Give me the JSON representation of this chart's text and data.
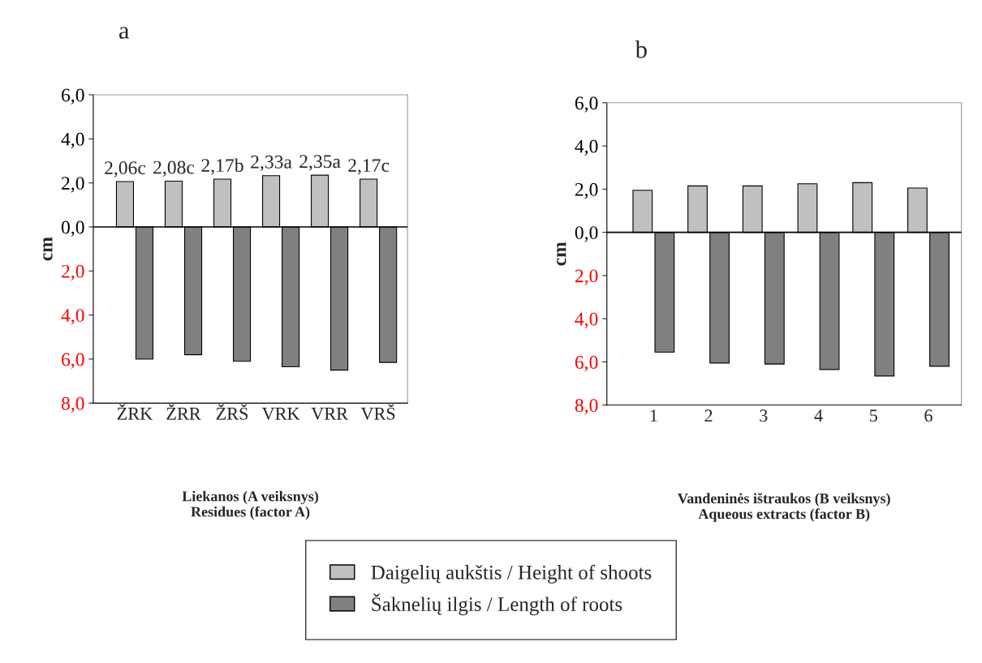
{
  "chart_data": [
    {
      "type": "bar",
      "title": "a",
      "ylabel": "cm",
      "xlabel": "Liekanos (A veiksnys)\nResidues (factor A)",
      "categories": [
        "ŽRK",
        "ŽRR",
        "ŽRŠ",
        "VRK",
        "VRR",
        "VRŠ"
      ],
      "series": [
        {
          "name": "Daigelių aukštis / Height of shoots",
          "color": "#c0c0c0",
          "values": [
            2.06,
            2.08,
            2.17,
            2.33,
            2.35,
            2.17
          ],
          "value_labels": [
            "2,06c",
            "2,08c",
            "2,17b",
            "2,33a",
            "2,35a",
            "2,17c"
          ]
        },
        {
          "name": "Šaknelių ilgis / Length of roots",
          "color": "#808080",
          "values": [
            -6.0,
            -5.8,
            -6.1,
            -6.35,
            -6.5,
            -6.15
          ]
        }
      ],
      "ylim": [
        -8,
        6
      ],
      "yticks": [
        {
          "value": 6,
          "label": "6,0"
        },
        {
          "value": 4,
          "label": "4,0"
        },
        {
          "value": 2,
          "label": "2,0"
        },
        {
          "value": 0,
          "label": "0,0"
        },
        {
          "value": -2,
          "label": "2,0"
        },
        {
          "value": -4,
          "label": "4,0"
        },
        {
          "value": -6,
          "label": "6,0"
        },
        {
          "value": -8,
          "label": "8,0"
        }
      ],
      "ref_lines": [
        {
          "axis": "y",
          "value": 0,
          "color": "#000000"
        }
      ],
      "grid": false,
      "legend": "bottom"
    },
    {
      "type": "bar",
      "title": "b",
      "ylabel": "cm",
      "xlabel": "Vandeninės ištraukos (B veiksnys)\nAqueous extracts (factor B)",
      "categories": [
        "1",
        "2",
        "3",
        "4",
        "5",
        "6"
      ],
      "series": [
        {
          "color": "#c0c0c0",
          "values": [
            1.95,
            2.15,
            2.15,
            2.25,
            2.3,
            2.05
          ]
        },
        {
          "color": "#808080",
          "values": [
            -5.55,
            -6.05,
            -6.1,
            -6.35,
            -6.65,
            -6.2
          ]
        }
      ],
      "ylim": [
        -8,
        6
      ],
      "yticks": [
        {
          "value": 6,
          "label": "6,0"
        },
        {
          "value": 4,
          "label": "4,0"
        },
        {
          "value": 2,
          "label": "2,0"
        },
        {
          "value": 0,
          "label": "0,0"
        },
        {
          "value": -2,
          "label": "2,0"
        },
        {
          "value": -4,
          "label": "4,0"
        },
        {
          "value": -6,
          "label": "6,0"
        },
        {
          "value": -8,
          "label": "8,0"
        }
      ],
      "ref_lines": [
        {
          "axis": "y",
          "value": 0,
          "color": "#000000"
        }
      ],
      "grid": false
    }
  ]
}
